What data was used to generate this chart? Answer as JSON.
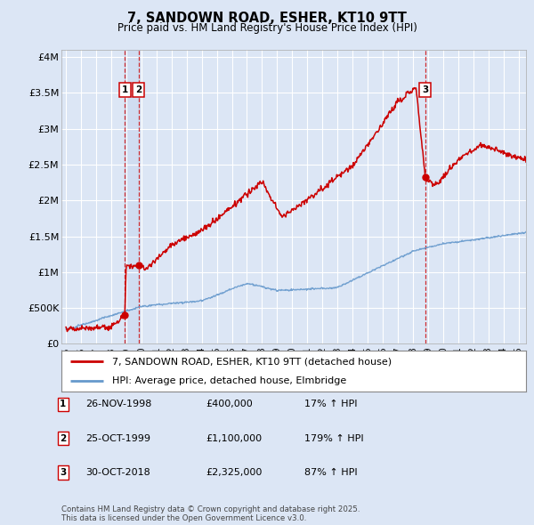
{
  "title": "7, SANDOWN ROAD, ESHER, KT10 9TT",
  "subtitle": "Price paid vs. HM Land Registry's House Price Index (HPI)",
  "background_color": "#dce6f5",
  "plot_bg_color": "#dce6f5",
  "grid_color": "#ffffff",
  "sale1_date": 1998.9,
  "sale2_date": 1999.82,
  "sale3_date": 2018.83,
  "sale1_price": 400000,
  "sale2_price": 1100000,
  "sale3_price": 2325000,
  "ylim": [
    0,
    4100000
  ],
  "xlim_start": 1994.7,
  "xlim_end": 2025.5,
  "yticks": [
    0,
    500000,
    1000000,
    1500000,
    2000000,
    2500000,
    3000000,
    3500000,
    4000000
  ],
  "ytick_labels": [
    "£0",
    "£500K",
    "£1M",
    "£1.5M",
    "£2M",
    "£2.5M",
    "£3M",
    "£3.5M",
    "£4M"
  ],
  "legend1": "7, SANDOWN ROAD, ESHER, KT10 9TT (detached house)",
  "legend2": "HPI: Average price, detached house, Elmbridge",
  "table_items": [
    {
      "num": "1",
      "date": "26-NOV-1998",
      "price": "£400,000",
      "hpi": "17% ↑ HPI"
    },
    {
      "num": "2",
      "date": "25-OCT-1999",
      "price": "£1,100,000",
      "hpi": "179% ↑ HPI"
    },
    {
      "num": "3",
      "date": "30-OCT-2018",
      "price": "£2,325,000",
      "hpi": "87% ↑ HPI"
    }
  ],
  "footnote": "Contains HM Land Registry data © Crown copyright and database right 2025.\nThis data is licensed under the Open Government Licence v3.0.",
  "house_color": "#cc0000",
  "hpi_color": "#6699cc",
  "vline_color": "#cc0000",
  "vline_fill1": 1999.0,
  "vline_fill2": 1999.82
}
